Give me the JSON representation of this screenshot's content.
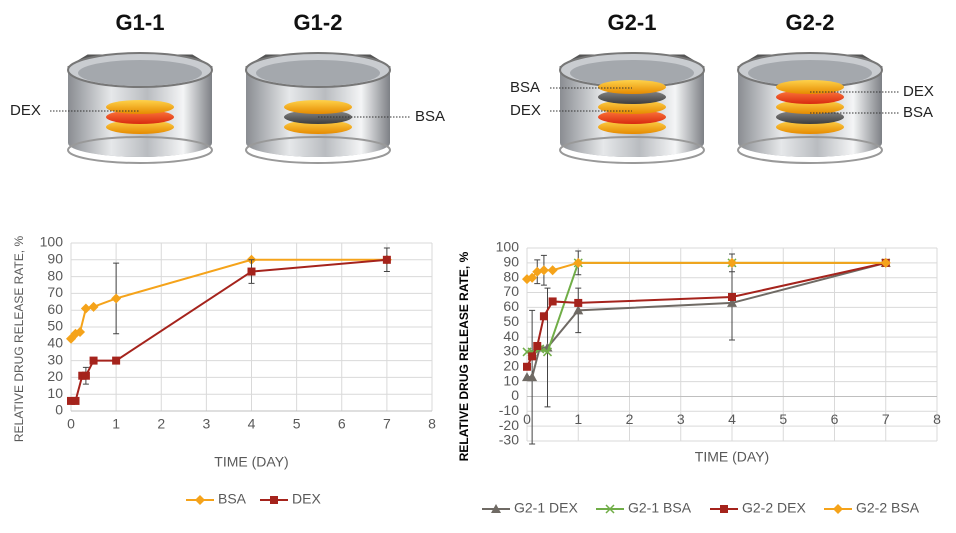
{
  "diagrams": [
    {
      "title": "G1-1",
      "labels": [
        "DEX"
      ]
    },
    {
      "title": "G1-2",
      "labels": [
        "BSA"
      ]
    },
    {
      "title": "G2-1",
      "labels": [
        "BSA",
        "DEX"
      ]
    },
    {
      "title": "G2-2",
      "labels": [
        "DEX",
        "BSA"
      ]
    }
  ],
  "chart_data": [
    {
      "type": "line",
      "x_label": "TIME (DAY)",
      "y_label": "RELATIVE DRUG RELEASE RATE, %",
      "xlim": [
        0,
        8
      ],
      "xticks": [
        0,
        1,
        2,
        3,
        4,
        5,
        6,
        7,
        8
      ],
      "ylim": [
        0,
        100
      ],
      "yticks": [
        0,
        10,
        20,
        30,
        40,
        50,
        60,
        70,
        80,
        90,
        100
      ],
      "grid": true,
      "legend": "bottom",
      "series": [
        {
          "name": "BSA",
          "color": "#f5a31a",
          "marker": "diamond",
          "x": [
            0,
            0.1,
            0.2,
            0.33,
            0.5,
            1,
            4,
            7
          ],
          "values": [
            43,
            46,
            47,
            61,
            62,
            67,
            90,
            90
          ],
          "errors": [
            null,
            null,
            null,
            null,
            null,
            21,
            null,
            null
          ]
        },
        {
          "name": "DEX",
          "color": "#a5231c",
          "marker": "square",
          "x": [
            0,
            0.1,
            0.25,
            0.33,
            0.5,
            1,
            4,
            7
          ],
          "values": [
            6,
            6,
            21,
            21,
            30,
            30,
            83,
            90
          ],
          "errors": [
            null,
            null,
            null,
            5,
            null,
            null,
            7,
            7
          ]
        }
      ]
    },
    {
      "type": "line",
      "x_label": "TIME (DAY)",
      "y_label": "RELATIVE DRUG RELEASE RATE, %",
      "xlim": [
        0,
        8
      ],
      "xticks": [
        0,
        1,
        2,
        3,
        4,
        5,
        6,
        7,
        8
      ],
      "ylim": [
        -30,
        100
      ],
      "yticks": [
        -30,
        -20,
        -10,
        0,
        10,
        20,
        30,
        40,
        50,
        60,
        70,
        80,
        90,
        100
      ],
      "grid": true,
      "legend": "bottom",
      "series": [
        {
          "name": "G2-1 DEX",
          "color": "#6f6a64",
          "marker": "triangle",
          "x": [
            0,
            0.1,
            0.25,
            0.4,
            1,
            4,
            7
          ],
          "values": [
            13,
            13,
            33,
            33,
            58,
            63,
            90
          ],
          "errors": [
            null,
            45,
            null,
            40,
            15,
            25,
            null
          ]
        },
        {
          "name": "G2-1 BSA",
          "color": "#70ad47",
          "marker": "x",
          "x": [
            0,
            0.1,
            0.25,
            0.4,
            1,
            4,
            7
          ],
          "values": [
            30,
            30,
            32,
            30,
            90,
            90,
            90
          ],
          "errors": [
            null,
            null,
            null,
            null,
            null,
            null,
            null
          ]
        },
        {
          "name": "G2-2 DEX",
          "color": "#a5231c",
          "marker": "square",
          "x": [
            0,
            0.1,
            0.2,
            0.33,
            0.5,
            1,
            4,
            7
          ],
          "values": [
            20,
            27,
            34,
            54,
            64,
            63,
            67,
            90
          ],
          "errors": [
            null,
            null,
            null,
            null,
            null,
            null,
            null,
            null
          ]
        },
        {
          "name": "G2-2 BSA",
          "color": "#f5a31a",
          "marker": "diamond",
          "x": [
            0,
            0.1,
            0.2,
            0.33,
            0.5,
            1,
            4,
            7
          ],
          "values": [
            79,
            80,
            84,
            85,
            85,
            90,
            90,
            90
          ],
          "errors": [
            null,
            null,
            8,
            10,
            null,
            8,
            6,
            null
          ]
        }
      ]
    }
  ]
}
